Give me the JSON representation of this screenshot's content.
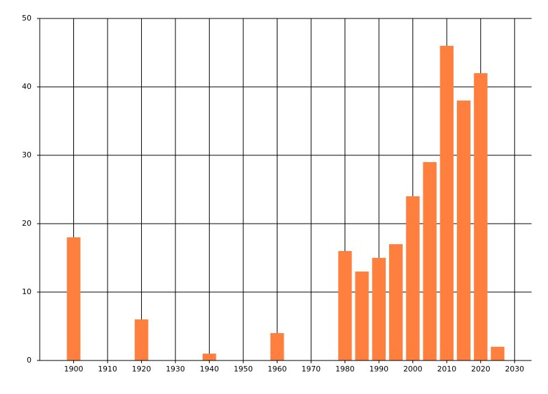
{
  "chart_data": {
    "type": "bar",
    "x": [
      1900,
      1920,
      1940,
      1960,
      1980,
      1985,
      1990,
      1995,
      2000,
      2005,
      2010,
      2015,
      2020,
      2025
    ],
    "values": [
      18,
      6,
      1,
      4,
      16,
      13,
      15,
      17,
      24,
      29,
      46,
      38,
      42,
      2
    ],
    "color": "#ff7f3f",
    "bar_width": 4,
    "xlim": [
      1890,
      2035
    ],
    "xticks": [
      1900,
      1910,
      1920,
      1930,
      1940,
      1950,
      1960,
      1970,
      1980,
      1990,
      2000,
      2010,
      2020,
      2030
    ],
    "ylim": [
      0,
      50
    ],
    "yticks": [
      0,
      10,
      20,
      30,
      40,
      50
    ],
    "grid": true
  }
}
